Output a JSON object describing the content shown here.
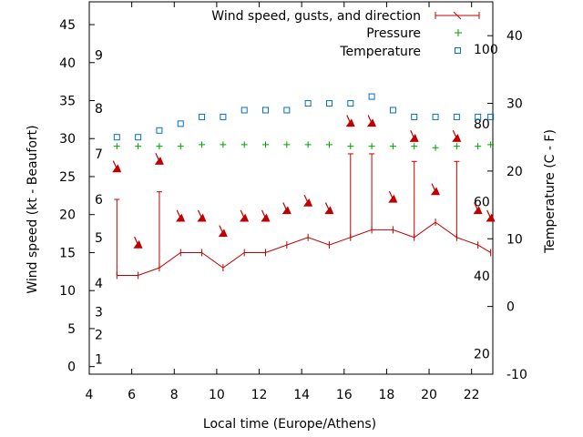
{
  "chart_data": {
    "type": "line",
    "xlabel": "Local time (Europe/Athens)",
    "ylabel": "Wind speed (kt - Beaufort)",
    "y2label": "Temperature (C - F)",
    "xlim": [
      4,
      23
    ],
    "ylim": [
      -1,
      48
    ],
    "y2lim": [
      -10,
      45
    ],
    "x_ticks": [
      "4",
      "6",
      "8",
      "10",
      "12",
      "14",
      "16",
      "18",
      "20",
      "22"
    ],
    "y_ticks": [
      "0",
      "5",
      "10",
      "15",
      "20",
      "25",
      "30",
      "35",
      "40",
      "45"
    ],
    "y2_ticks": [
      "-10",
      "0",
      "10",
      "20",
      "30",
      "40"
    ],
    "beaufort_labels": [
      {
        "label": "1",
        "y": 1
      },
      {
        "label": "2",
        "y": 4.2
      },
      {
        "label": "3",
        "y": 7.2
      },
      {
        "label": "4",
        "y": 11
      },
      {
        "label": "5",
        "y": 17
      },
      {
        "label": "6",
        "y": 22
      },
      {
        "label": "7",
        "y": 28
      },
      {
        "label": "8",
        "y": 34
      },
      {
        "label": "9",
        "y": 41
      }
    ],
    "fahrenheit_labels": [
      {
        "label": "20",
        "y": -7
      },
      {
        "label": "40",
        "y": 4.5
      },
      {
        "label": "60",
        "y": 15.5
      },
      {
        "label": "80",
        "y": 27
      },
      {
        "label": "100",
        "y": 38
      }
    ],
    "legend_placement": "top-right",
    "series": [
      {
        "name": "Wind speed, gusts, and direction",
        "color": "#c00000",
        "x": [
          5.3,
          6.3,
          7.3,
          8.3,
          9.3,
          10.3,
          11.3,
          12.3,
          13.3,
          14.3,
          15.3,
          16.3,
          17.3,
          18.3,
          19.3,
          20.3,
          21.3,
          22.3,
          22.9
        ],
        "speed": [
          12,
          12,
          13,
          15,
          15,
          13,
          15,
          15,
          16,
          17,
          16,
          17,
          18,
          18,
          17,
          19,
          17,
          16,
          15
        ],
        "gust": [
          22,
          null,
          23,
          null,
          null,
          null,
          null,
          null,
          null,
          null,
          null,
          28,
          28,
          null,
          27,
          null,
          27,
          null,
          null
        ],
        "dir_y": [
          26,
          16,
          27,
          19.5,
          19.5,
          17.5,
          19.5,
          19.5,
          20.5,
          21.5,
          20.5,
          32,
          32,
          22,
          30,
          23,
          30,
          20.5,
          19.5
        ]
      },
      {
        "name": "Pressure",
        "color": "#00a000",
        "x": [
          5.3,
          6.3,
          7.3,
          8.3,
          9.3,
          10.3,
          11.3,
          12.3,
          13.3,
          14.3,
          15.3,
          16.3,
          17.3,
          18.3,
          19.3,
          20.3,
          21.3,
          22.3,
          22.9
        ],
        "y": [
          29,
          29,
          29,
          29,
          29.2,
          29.2,
          29.2,
          29.2,
          29.2,
          29.2,
          29.2,
          29,
          29,
          29,
          29,
          28.8,
          29,
          29,
          29.2
        ]
      },
      {
        "name": "Temperature",
        "color": "#0070c0",
        "x": [
          5.3,
          6.3,
          7.3,
          8.3,
          9.3,
          10.3,
          11.3,
          12.3,
          13.3,
          14.3,
          15.3,
          16.3,
          17.3,
          18.3,
          19.3,
          20.3,
          21.3,
          22.3,
          22.9
        ],
        "y": [
          25,
          25,
          26,
          27,
          28,
          28,
          29,
          29,
          29,
          30,
          30,
          30,
          31,
          29,
          28,
          28,
          28,
          28,
          28
        ]
      }
    ]
  }
}
